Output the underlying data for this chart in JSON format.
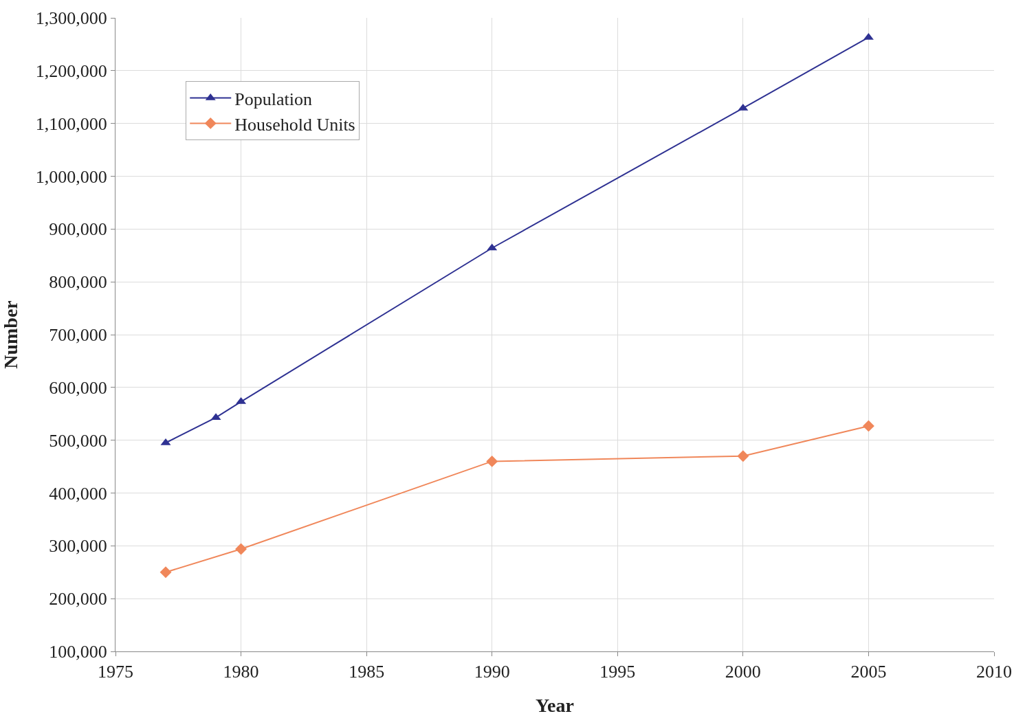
{
  "chart_data": {
    "type": "line",
    "xlabel": "Year",
    "ylabel": "Number",
    "x": [
      1977,
      1979,
      1980,
      1990,
      2000,
      2005
    ],
    "series": [
      {
        "name": "Population",
        "color": "#2e3192",
        "marker": "triangle",
        "values": [
          495000,
          543000,
          573000,
          864000,
          1129000,
          1263000
        ]
      },
      {
        "name": "Household Units",
        "color": "#f0875a",
        "marker": "diamond",
        "x": [
          1977,
          1980,
          1990,
          2000,
          2005
        ],
        "values": [
          250000,
          294000,
          460000,
          470000,
          527000
        ]
      }
    ],
    "xlim": [
      1975,
      2010
    ],
    "xticks": [
      1975,
      1980,
      1985,
      1990,
      1995,
      2000,
      2005,
      2010
    ],
    "ylim": [
      100000,
      1300000
    ],
    "yticks": [
      {
        "value": 100000,
        "label": "100,000"
      },
      {
        "value": 200000,
        "label": "200,000"
      },
      {
        "value": 300000,
        "label": "300,000"
      },
      {
        "value": 400000,
        "label": "400,000"
      },
      {
        "value": 500000,
        "label": "500,000"
      },
      {
        "value": 600000,
        "label": "600,000"
      },
      {
        "value": 700000,
        "label": "700,000"
      },
      {
        "value": 800000,
        "label": "800,000"
      },
      {
        "value": 900000,
        "label": "900,000"
      },
      {
        "value": 1000000,
        "label": "1,000,000"
      },
      {
        "value": 1100000,
        "label": "1,100,000"
      },
      {
        "value": 1200000,
        "label": "1,200,000"
      },
      {
        "value": 1300000,
        "label": "1,300,000"
      }
    ],
    "grid": true,
    "legend": "top left",
    "line_style": "solid"
  }
}
